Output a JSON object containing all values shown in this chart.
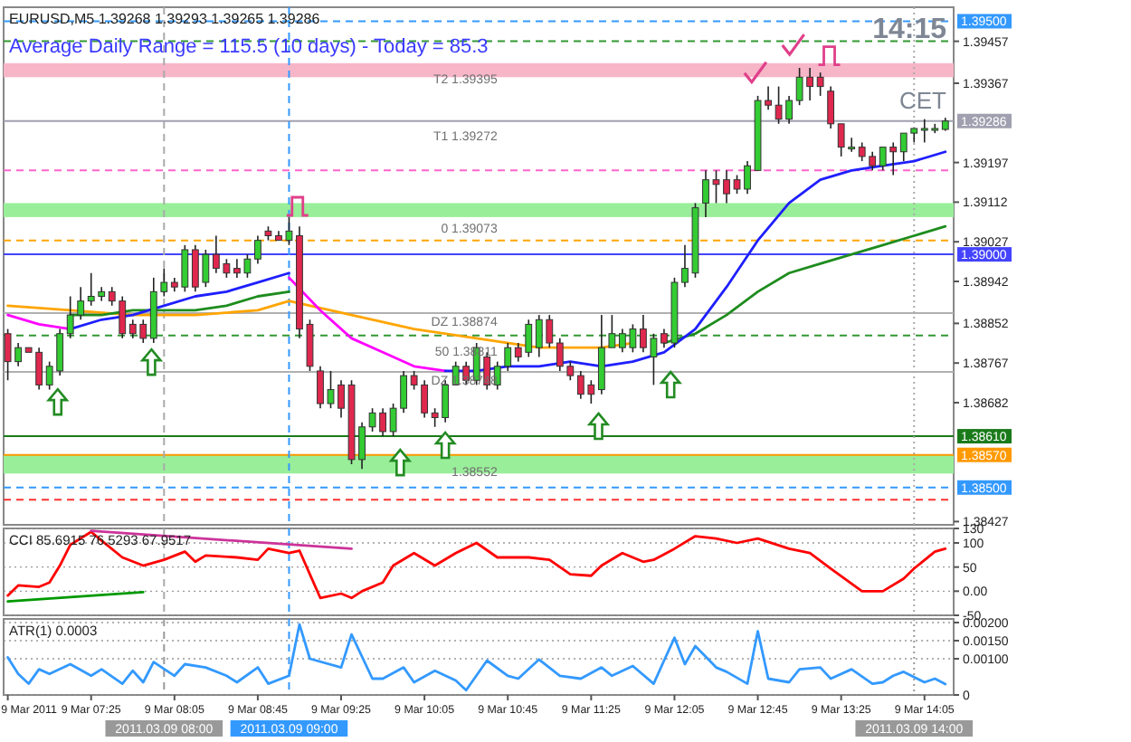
{
  "chart_data": [
    {
      "type": "candlestick",
      "title": "EURUSD,M5 1.39268 1.39293 1.39265 1.39286",
      "subtitle": "Average Daily Range = 115.5 (10 days) - Today = 85.3",
      "x": [
        "2011-03-09T06:45",
        "2011-03-09T06:50",
        "2011-03-09T06:55",
        "2011-03-09T07:00",
        "2011-03-09T07:05",
        "2011-03-09T07:10",
        "2011-03-09T07:15",
        "2011-03-09T07:20",
        "2011-03-09T07:25",
        "2011-03-09T07:30",
        "2011-03-09T07:35",
        "2011-03-09T07:40",
        "2011-03-09T07:45",
        "2011-03-09T07:50",
        "2011-03-09T07:55",
        "2011-03-09T08:00",
        "2011-03-09T08:05",
        "2011-03-09T08:10",
        "2011-03-09T08:15",
        "2011-03-09T08:20",
        "2011-03-09T08:25",
        "2011-03-09T08:30",
        "2011-03-09T08:35",
        "2011-03-09T08:40",
        "2011-03-09T08:45",
        "2011-03-09T08:50",
        "2011-03-09T08:55",
        "2011-03-09T09:00",
        "2011-03-09T09:05",
        "2011-03-09T09:10",
        "2011-03-09T09:15",
        "2011-03-09T09:20",
        "2011-03-09T09:25",
        "2011-03-09T09:30",
        "2011-03-09T09:35",
        "2011-03-09T09:40",
        "2011-03-09T09:45",
        "2011-03-09T09:50",
        "2011-03-09T09:55",
        "2011-03-09T10:00",
        "2011-03-09T10:05",
        "2011-03-09T10:10",
        "2011-03-09T10:15",
        "2011-03-09T10:20",
        "2011-03-09T10:25",
        "2011-03-09T10:30",
        "2011-03-09T10:35",
        "2011-03-09T10:40",
        "2011-03-09T10:45",
        "2011-03-09T10:50",
        "2011-03-09T10:55",
        "2011-03-09T11:00",
        "2011-03-09T11:05",
        "2011-03-09T11:10",
        "2011-03-09T11:15",
        "2011-03-09T11:20",
        "2011-03-09T11:25",
        "2011-03-09T11:30",
        "2011-03-09T11:35",
        "2011-03-09T11:40",
        "2011-03-09T11:45",
        "2011-03-09T11:50",
        "2011-03-09T11:55",
        "2011-03-09T12:00",
        "2011-03-09T12:05",
        "2011-03-09T12:10",
        "2011-03-09T12:15",
        "2011-03-09T12:20",
        "2011-03-09T12:25",
        "2011-03-09T12:30",
        "2011-03-09T12:35",
        "2011-03-09T12:40",
        "2011-03-09T12:45",
        "2011-03-09T12:50",
        "2011-03-09T12:55",
        "2011-03-09T13:00",
        "2011-03-09T13:05",
        "2011-03-09T13:10",
        "2011-03-09T13:15",
        "2011-03-09T13:20",
        "2011-03-09T13:25",
        "2011-03-09T13:30",
        "2011-03-09T13:35",
        "2011-03-09T13:40",
        "2011-03-09T13:45",
        "2011-03-09T13:50",
        "2011-03-09T13:55",
        "2011-03-09T14:00",
        "2011-03-09T14:05",
        "2011-03-09T14:10",
        "2011-03-09T14:15"
      ],
      "ohlc": [
        [
          1.3883,
          1.3884,
          1.3873,
          1.3877
        ],
        [
          1.3877,
          1.3881,
          1.3876,
          1.388
        ],
        [
          1.388,
          1.388,
          1.3879,
          1.3879
        ],
        [
          1.3879,
          1.388,
          1.3871,
          1.3872
        ],
        [
          1.3872,
          1.3877,
          1.3871,
          1.3876
        ],
        [
          1.3875,
          1.3884,
          1.3874,
          1.3883
        ],
        [
          1.3883,
          1.3891,
          1.3882,
          1.3887
        ],
        [
          1.3887,
          1.3893,
          1.3886,
          1.389
        ],
        [
          1.389,
          1.3896,
          1.3889,
          1.3891
        ],
        [
          1.3891,
          1.3893,
          1.389,
          1.3892
        ],
        [
          1.3892,
          1.3893,
          1.3889,
          1.389
        ],
        [
          1.389,
          1.3891,
          1.3882,
          1.3883
        ],
        [
          1.3885,
          1.3886,
          1.3882,
          1.3883
        ],
        [
          1.3885,
          1.3886,
          1.3881,
          1.3882
        ],
        [
          1.3882,
          1.3895,
          1.3881,
          1.3892
        ],
        [
          1.3892,
          1.3897,
          1.3891,
          1.3894
        ],
        [
          1.3894,
          1.3895,
          1.3892,
          1.3893
        ],
        [
          1.3893,
          1.3902,
          1.3892,
          1.3901
        ],
        [
          1.3901,
          1.3902,
          1.3892,
          1.3893
        ],
        [
          1.3894,
          1.3901,
          1.3893,
          1.39
        ],
        [
          1.39,
          1.3904,
          1.3896,
          1.3897
        ],
        [
          1.3898,
          1.3899,
          1.3895,
          1.3896
        ],
        [
          1.3897,
          1.3899,
          1.3895,
          1.3896
        ],
        [
          1.3896,
          1.39,
          1.3895,
          1.3899
        ],
        [
          1.3899,
          1.3904,
          1.3898,
          1.3903
        ],
        [
          1.3905,
          1.3906,
          1.3903,
          1.3904
        ],
        [
          1.3904,
          1.3905,
          1.3903,
          1.3903
        ],
        [
          1.3903,
          1.3908,
          1.3902,
          1.3905
        ],
        [
          1.3904,
          1.3906,
          1.3882,
          1.3884
        ],
        [
          1.3885,
          1.3886,
          1.3875,
          1.3876
        ],
        [
          1.3875,
          1.3876,
          1.3867,
          1.3868
        ],
        [
          1.3868,
          1.3875,
          1.3867,
          1.3871
        ],
        [
          1.3872,
          1.3873,
          1.3865,
          1.3867
        ],
        [
          1.3872,
          1.3873,
          1.3855,
          1.3856
        ],
        [
          1.3856,
          1.3864,
          1.3854,
          1.3863
        ],
        [
          1.3863,
          1.3867,
          1.3862,
          1.3866
        ],
        [
          1.3866,
          1.3867,
          1.3861,
          1.3862
        ],
        [
          1.3862,
          1.3868,
          1.3861,
          1.3867
        ],
        [
          1.3867,
          1.3875,
          1.3866,
          1.3874
        ],
        [
          1.3874,
          1.3875,
          1.3871,
          1.3872
        ],
        [
          1.3872,
          1.3873,
          1.3865,
          1.3866
        ],
        [
          1.3866,
          1.3867,
          1.3863,
          1.3865
        ],
        [
          1.3865,
          1.3873,
          1.3864,
          1.3872
        ],
        [
          1.3872,
          1.3877,
          1.3872,
          1.3876
        ],
        [
          1.3876,
          1.3877,
          1.3872,
          1.3873
        ],
        [
          1.3873,
          1.3881,
          1.3872,
          1.388
        ],
        [
          1.3878,
          1.3879,
          1.3871,
          1.3872
        ],
        [
          1.3872,
          1.3877,
          1.3871,
          1.3876
        ],
        [
          1.3876,
          1.3881,
          1.3875,
          1.388
        ],
        [
          1.388,
          1.3881,
          1.3877,
          1.3878
        ],
        [
          1.3879,
          1.3886,
          1.3878,
          1.3885
        ],
        [
          1.388,
          1.3887,
          1.3878,
          1.3886
        ],
        [
          1.3886,
          1.3887,
          1.388,
          1.3881
        ],
        [
          1.3881,
          1.3882,
          1.3875,
          1.3876
        ],
        [
          1.3876,
          1.3877,
          1.3873,
          1.3874
        ],
        [
          1.3874,
          1.3875,
          1.3869,
          1.387
        ],
        [
          1.3872,
          1.3873,
          1.3868,
          1.387
        ],
        [
          1.3871,
          1.3887,
          1.387,
          1.388
        ],
        [
          1.388,
          1.3887,
          1.388,
          1.3883
        ],
        [
          1.388,
          1.3884,
          1.3879,
          1.3883
        ],
        [
          1.388,
          1.3885,
          1.3879,
          1.3884
        ],
        [
          1.3884,
          1.3887,
          1.3879,
          1.388
        ],
        [
          1.3878,
          1.3883,
          1.3872,
          1.3882
        ],
        [
          1.3883,
          1.3884,
          1.388,
          1.3881
        ],
        [
          1.3881,
          1.3895,
          1.388,
          1.3894
        ],
        [
          1.3894,
          1.3902,
          1.3893,
          1.3897
        ],
        [
          1.3896,
          1.3911,
          1.3895,
          1.391
        ],
        [
          1.3911,
          1.3918,
          1.3908,
          1.3916
        ],
        [
          1.3916,
          1.3918,
          1.3911,
          1.3915
        ],
        [
          1.3916,
          1.3918,
          1.3911,
          1.3913
        ],
        [
          1.3916,
          1.3917,
          1.3913,
          1.3914
        ],
        [
          1.3914,
          1.392,
          1.3913,
          1.3919
        ],
        [
          1.3918,
          1.3934,
          1.3918,
          1.3933
        ],
        [
          1.3933,
          1.3936,
          1.3931,
          1.3932
        ],
        [
          1.3932,
          1.3936,
          1.3928,
          1.3929
        ],
        [
          1.3929,
          1.3934,
          1.3928,
          1.3933
        ],
        [
          1.3933,
          1.394,
          1.3932,
          1.3938
        ],
        [
          1.3938,
          1.394,
          1.3933,
          1.3936
        ],
        [
          1.3938,
          1.3939,
          1.3934,
          1.3936
        ],
        [
          1.3935,
          1.3936,
          1.3927,
          1.3928
        ],
        [
          1.3928,
          1.3928,
          1.3921,
          1.3923
        ],
        [
          1.3923,
          1.3925,
          1.3922,
          1.3923
        ],
        [
          1.3923,
          1.3924,
          1.392,
          1.3921
        ],
        [
          1.3921,
          1.3922,
          1.3918,
          1.3919
        ],
        [
          1.3919,
          1.3923,
          1.3918,
          1.3923
        ],
        [
          1.3923,
          1.3924,
          1.3917,
          1.3922
        ],
        [
          1.3922,
          1.3926,
          1.392,
          1.3926
        ],
        [
          1.3926,
          1.3927,
          1.3924,
          1.3927
        ],
        [
          1.3927,
          1.3929,
          1.3924,
          1.3927
        ],
        [
          1.3927,
          1.3928,
          1.3926,
          1.3927
        ],
        [
          1.39268,
          1.39293,
          1.39265,
          1.39286
        ]
      ],
      "series": [
        {
          "type": "line",
          "color": "#ffa500",
          "x": [
            "2011-03-09T06:45",
            "2011-03-09T07:15",
            "2011-03-09T07:45",
            "2011-03-09T08:15",
            "2011-03-09T08:45",
            "2011-03-09T09:00",
            "2011-03-09T09:30",
            "2011-03-09T10:00",
            "2011-03-09T10:30",
            "2011-03-09T11:00",
            "2011-03-09T11:30",
            "2011-03-09T11:45"
          ],
          "values": [
            1.3889,
            1.3888,
            1.3887,
            1.3887,
            1.3888,
            1.389,
            1.3887,
            1.3884,
            1.3882,
            1.388,
            1.388,
            1.3881
          ]
        },
        {
          "type": "line",
          "color": "#1e8c1e",
          "x": [
            "2011-03-09T07:15",
            "2011-03-09T07:30",
            "2011-03-09T07:45",
            "2011-03-09T08:00",
            "2011-03-09T08:15",
            "2011-03-09T08:30",
            "2011-03-09T08:45",
            "2011-03-09T09:00",
            "2011-03-09T10:00",
            "2011-03-09T12:00",
            "2011-03-09T12:15",
            "2011-03-09T12:30",
            "2011-03-09T12:45",
            "2011-03-09T13:00",
            "2011-03-09T13:15",
            "2011-03-09T13:30",
            "2011-03-09T13:45",
            "2011-03-09T14:00",
            "2011-03-09T14:15"
          ],
          "values": [
            1.3887,
            1.3887,
            1.3888,
            1.3888,
            1.3888,
            1.3889,
            1.3891,
            1.3892,
            null,
            1.3881,
            1.3883,
            1.3887,
            1.3892,
            1.3896,
            1.3898,
            1.39,
            1.3902,
            1.3904,
            1.3906
          ]
        },
        {
          "type": "line",
          "color": "#ff00ff",
          "x": [
            "2011-03-09T06:45",
            "2011-03-09T07:00",
            "2011-03-09T07:15",
            "2011-03-09T08:00",
            "2011-03-09T09:00",
            "2011-03-09T09:15",
            "2011-03-09T09:30",
            "2011-03-09T09:45",
            "2011-03-09T10:00",
            "2011-03-09T10:15"
          ],
          "values": [
            1.3887,
            1.3885,
            1.3884,
            null,
            1.3895,
            1.3888,
            1.3882,
            1.3879,
            1.3876,
            1.3875
          ]
        },
        {
          "type": "line",
          "color": "#1f1fff",
          "x": [
            "2011-03-09T07:15",
            "2011-03-09T07:30",
            "2011-03-09T07:45",
            "2011-03-09T08:00",
            "2011-03-09T08:15",
            "2011-03-09T08:30",
            "2011-03-09T08:45",
            "2011-03-09T09:00",
            "2011-03-09T09:30",
            "2011-03-09T10:15",
            "2011-03-09T10:30",
            "2011-03-09T10:45",
            "2011-03-09T11:00",
            "2011-03-09T11:15",
            "2011-03-09T11:30",
            "2011-03-09T11:45",
            "2011-03-09T12:00",
            "2011-03-09T12:15",
            "2011-03-09T12:30",
            "2011-03-09T12:45",
            "2011-03-09T13:00",
            "2011-03-09T13:15",
            "2011-03-09T13:30",
            "2011-03-09T13:45",
            "2011-03-09T14:00",
            "2011-03-09T14:15"
          ],
          "values": [
            1.3884,
            1.3886,
            1.3887,
            1.3889,
            1.3891,
            1.3892,
            1.3894,
            1.3896,
            null,
            1.3875,
            1.3875,
            1.3876,
            1.3876,
            1.3877,
            1.3876,
            1.3877,
            1.3879,
            1.3884,
            1.3893,
            1.3903,
            1.3911,
            1.3916,
            1.3918,
            1.3919,
            1.392,
            1.3922
          ]
        }
      ],
      "xlim": [
        "2011-03-09T06:43",
        "2011-03-09T14:19"
      ],
      "ylim": [
        1.3842,
        1.3953
      ],
      "yticks": [
        1.39457,
        1.39367,
        1.39197,
        1.39112,
        1.39027,
        1.38942,
        1.38852,
        1.38767,
        1.38682,
        1.38427
      ],
      "bands": [
        {
          "axis": "y",
          "from": 1.3938,
          "to": 1.3941,
          "color": "#f7b6c8"
        },
        {
          "axis": "y",
          "from": 1.3908,
          "to": 1.3911,
          "color": "#99ee99"
        },
        {
          "axis": "y",
          "from": 1.3853,
          "to": 1.3857,
          "color": "#99ee99"
        }
      ],
      "ref_lines": [
        {
          "axis": "y",
          "value": 1.395,
          "label": "1.39500",
          "color": "#3399ff",
          "line_style": "dashed"
        },
        {
          "axis": "y",
          "value": 1.39457,
          "color": "#339933",
          "line_style": "dashed"
        },
        {
          "axis": "y",
          "value": 1.39286,
          "label": "1.39286",
          "color": "#a0a0b0"
        },
        {
          "axis": "y",
          "value": 1.3918,
          "color": "#ff66cc",
          "line_style": "dashed"
        },
        {
          "axis": "y",
          "value": 1.3903,
          "color": "#ffa500",
          "line_style": "dashed"
        },
        {
          "axis": "y",
          "value": 1.39,
          "label": "1.39000",
          "color": "#4444ff"
        },
        {
          "axis": "y",
          "value": 1.38826,
          "color": "#339933",
          "line_style": "dashed"
        },
        {
          "axis": "y",
          "value": 1.38874,
          "color": "#b0b0b0"
        },
        {
          "axis": "y",
          "value": 1.38748,
          "color": "#b0b0b0"
        },
        {
          "axis": "y",
          "value": 1.3861,
          "label": "1.38610",
          "color": "#1a7a1a"
        },
        {
          "axis": "y",
          "value": 1.3857,
          "label": "1.38570",
          "color": "#ff9900"
        },
        {
          "axis": "y",
          "value": 1.385,
          "label": "1.38500",
          "color": "#3399ff",
          "line_style": "dashed"
        },
        {
          "axis": "y",
          "value": 1.38474,
          "color": "#ff3333",
          "line_style": "dashed"
        },
        {
          "axis": "x",
          "value": "2011-03-09T08:00",
          "color": "#aaaaaa",
          "line_style": "dashed"
        },
        {
          "axis": "x",
          "value": "2011-03-09T09:00",
          "color": "#3399ff",
          "line_style": "dashed"
        },
        {
          "axis": "x",
          "value": "2011-03-09T14:00",
          "color": "#aaaaaa",
          "line_style": "dotted"
        }
      ],
      "annotations": [
        "14:15",
        "CET",
        {
          "text": "T2 1.39395",
          "x": "2011-03-09T10:40",
          "y": 1.39395
        },
        {
          "text": "T1 1.39272",
          "x": "2011-03-09T10:40",
          "y": 1.39272
        },
        {
          "text": "0 1.39073",
          "x": "2011-03-09T10:40",
          "y": 1.39073
        },
        {
          "text": "DZ 1.38874",
          "x": "2011-03-09T10:40",
          "y": 1.38874
        },
        {
          "text": "50 1.38811",
          "x": "2011-03-09T10:40",
          "y": 1.38811
        },
        {
          "text": "DZ 1.38748",
          "x": "2011-03-09T10:40",
          "y": 1.38748
        },
        {
          "text": "1.38552",
          "x": "2011-03-09T10:40",
          "y": 1.38552
        }
      ],
      "tick_labels": "y"
    },
    {
      "type": "line",
      "title": "CCI 85.6915 76.5293 67.9517",
      "series": [
        {
          "color": "#ff0000",
          "x": [
            "2011-03-09T06:45",
            "2011-03-09T06:50",
            "2011-03-09T07:00",
            "2011-03-09T07:05",
            "2011-03-09T07:10",
            "2011-03-09T07:15",
            "2011-03-09T07:25",
            "2011-03-09T07:30",
            "2011-03-09T07:40",
            "2011-03-09T07:50",
            "2011-03-09T08:00",
            "2011-03-09T08:10",
            "2011-03-09T08:15",
            "2011-03-09T08:20",
            "2011-03-09T08:35",
            "2011-03-09T08:45",
            "2011-03-09T08:50",
            "2011-03-09T09:00",
            "2011-03-09T09:05",
            "2011-03-09T09:10",
            "2011-03-09T09:15",
            "2011-03-09T09:25",
            "2011-03-09T09:30",
            "2011-03-09T09:35",
            "2011-03-09T09:45",
            "2011-03-09T09:50",
            "2011-03-09T10:00",
            "2011-03-09T10:10",
            "2011-03-09T10:20",
            "2011-03-09T10:30",
            "2011-03-09T10:40",
            "2011-03-09T10:55",
            "2011-03-09T11:05",
            "2011-03-09T11:15",
            "2011-03-09T11:25",
            "2011-03-09T11:30",
            "2011-03-09T11:40",
            "2011-03-09T11:50",
            "2011-03-09T11:55",
            "2011-03-09T12:05",
            "2011-03-09T12:15",
            "2011-03-09T12:25",
            "2011-03-09T12:35",
            "2011-03-09T12:45",
            "2011-03-09T13:00",
            "2011-03-09T13:10",
            "2011-03-09T13:20",
            "2011-03-09T13:35",
            "2011-03-09T13:45",
            "2011-03-09T13:55",
            "2011-03-09T14:00",
            "2011-03-09T14:10",
            "2011-03-09T14:15"
          ],
          "values": [
            -9,
            12,
            9,
            18,
            53,
            96,
            123,
            105,
            70,
            53,
            65,
            82,
            61,
            74,
            70,
            65,
            88,
            79,
            84,
            35,
            -14,
            -5,
            -14,
            0,
            18,
            53,
            79,
            53,
            79,
            100,
            70,
            70,
            65,
            35,
            32,
            53,
            79,
            61,
            65,
            88,
            114,
            109,
            100,
            109,
            88,
            79,
            47,
            0,
            0,
            26,
            47,
            82,
            88
          ]
        },
        {
          "color": "#cc3399",
          "x": [
            "2011-03-09T07:25",
            "2011-03-09T09:30"
          ],
          "values": [
            125,
            88
          ]
        },
        {
          "color": "#009900",
          "x": [
            "2011-03-09T06:45",
            "2011-03-09T07:50"
          ],
          "values": [
            -21,
            -2
          ]
        }
      ],
      "xlim": [
        "2011-03-09T06:43",
        "2011-03-09T14:19"
      ],
      "ylim": [
        -50,
        130
      ],
      "yticks": [
        130,
        100,
        50,
        {
          "value": 0,
          "label": "0.00"
        },
        -50
      ],
      "grid": "y",
      "ref_lines": [
        {
          "axis": "x",
          "value": "2011-03-09T08:00",
          "color": "#aaaaaa",
          "line_style": "dashed"
        },
        {
          "axis": "x",
          "value": "2011-03-09T09:00",
          "color": "#3399ff",
          "line_style": "dashed"
        },
        {
          "axis": "x",
          "value": "2011-03-09T14:00",
          "color": "#aaaaaa",
          "line_style": "dotted"
        }
      ],
      "tick_labels": "y"
    },
    {
      "type": "line",
      "title": "ATR(1) 0.0003",
      "series": [
        {
          "color": "#3399ff",
          "x": [
            "2011-03-09T06:45",
            "2011-03-09T06:50",
            "2011-03-09T06:55",
            "2011-03-09T07:00",
            "2011-03-09T07:05",
            "2011-03-09T07:15",
            "2011-03-09T07:25",
            "2011-03-09T07:30",
            "2011-03-09T07:40",
            "2011-03-09T07:45",
            "2011-03-09T07:50",
            "2011-03-09T07:55",
            "2011-03-09T08:05",
            "2011-03-09T08:10",
            "2011-03-09T08:20",
            "2011-03-09T08:30",
            "2011-03-09T08:35",
            "2011-03-09T08:45",
            "2011-03-09T08:50",
            "2011-03-09T09:00",
            "2011-03-09T09:05",
            "2011-03-09T09:10",
            "2011-03-09T09:25",
            "2011-03-09T09:30",
            "2011-03-09T09:40",
            "2011-03-09T09:45",
            "2011-03-09T09:55",
            "2011-03-09T10:00",
            "2011-03-09T10:10",
            "2011-03-09T10:20",
            "2011-03-09T10:25",
            "2011-03-09T10:35",
            "2011-03-09T10:45",
            "2011-03-09T10:50",
            "2011-03-09T11:00",
            "2011-03-09T11:10",
            "2011-03-09T11:20",
            "2011-03-09T11:30",
            "2011-03-09T11:35",
            "2011-03-09T11:45",
            "2011-03-09T11:55",
            "2011-03-09T12:00",
            "2011-03-09T12:05",
            "2011-03-09T12:10",
            "2011-03-09T12:15",
            "2011-03-09T12:25",
            "2011-03-09T12:30",
            "2011-03-09T12:40",
            "2011-03-09T12:45",
            "2011-03-09T12:50",
            "2011-03-09T13:00",
            "2011-03-09T13:05",
            "2011-03-09T13:15",
            "2011-03-09T13:20",
            "2011-03-09T13:30",
            "2011-03-09T13:40",
            "2011-03-09T13:45",
            "2011-03-09T13:50",
            "2011-03-09T13:55",
            "2011-03-09T14:05",
            "2011-03-09T14:10",
            "2011-03-09T14:15"
          ],
          "values": [
            0.00104,
            0.00058,
            0.00031,
            0.00071,
            0.00058,
            0.00085,
            0.00053,
            0.00071,
            0.00031,
            0.00067,
            0.00035,
            0.00091,
            0.00053,
            0.00085,
            0.00076,
            0.00053,
            0.00035,
            0.00076,
            0.00031,
            0.00053,
            0.00195,
            0.001,
            0.00076,
            0.00167,
            0.00045,
            0.00045,
            0.00076,
            0.00035,
            0.00067,
            0.0004,
            0.00013,
            0.00095,
            0.00053,
            0.00045,
            0.00098,
            0.00053,
            0.00045,
            0.00076,
            0.00053,
            0.0008,
            0.00031,
            0.00095,
            0.00158,
            0.00085,
            0.00135,
            0.00076,
            0.00064,
            0.00031,
            0.00176,
            0.00045,
            0.00035,
            0.00071,
            0.00076,
            0.00045,
            0.00071,
            0.00031,
            0.00035,
            0.00053,
            0.00064,
            0.00035,
            0.00045,
            0.0003
          ]
        }
      ],
      "xlim": [
        "2011-03-09T06:43",
        "2011-03-09T14:19"
      ],
      "ylim": [
        0,
        0.0021
      ],
      "xticks": [
        {
          "value": "2011-03-09T06:45",
          "label": "9 Mar 2011"
        },
        {
          "value": "2011-03-09T07:25",
          "label": "9 Mar 07:25"
        },
        {
          "value": "2011-03-09T08:05",
          "label": "9 Mar 08:05"
        },
        {
          "value": "2011-03-09T08:45",
          "label": "9 Mar 08:45"
        },
        {
          "value": "2011-03-09T09:25",
          "label": "9 Mar 09:25"
        },
        {
          "value": "2011-03-09T10:05",
          "label": "9 Mar 10:05"
        },
        {
          "value": "2011-03-09T10:45",
          "label": "9 Mar 10:45"
        },
        {
          "value": "2011-03-09T11:25",
          "label": "9 Mar 11:25"
        },
        {
          "value": "2011-03-09T12:05",
          "label": "9 Mar 12:05"
        },
        {
          "value": "2011-03-09T12:45",
          "label": "9 Mar 12:45"
        },
        {
          "value": "2011-03-09T13:25",
          "label": "9 Mar 13:25"
        },
        {
          "value": "2011-03-09T14:05",
          "label": "9 Mar 14:05"
        }
      ],
      "yticks": [
        0,
        {
          "value": 0.001,
          "label": "0.00100"
        },
        {
          "value": 0.0015,
          "label": "0.00150"
        },
        {
          "value": 0.002,
          "label": "0.00200"
        }
      ],
      "grid": "y",
      "ref_lines": [
        {
          "axis": "x",
          "value": "2011-03-09T08:00",
          "label": "2011.03.09 08:00",
          "color": "#999999",
          "line_style": "dashed"
        },
        {
          "axis": "x",
          "value": "2011-03-09T09:00",
          "label": "2011.03.09 09:00",
          "color": "#3399ff",
          "line_style": "dashed"
        },
        {
          "axis": "x",
          "value": "2011-03-09T14:00",
          "label": "2011.03.09 14:00",
          "color": "#999999",
          "line_style": "dotted"
        }
      ]
    }
  ]
}
